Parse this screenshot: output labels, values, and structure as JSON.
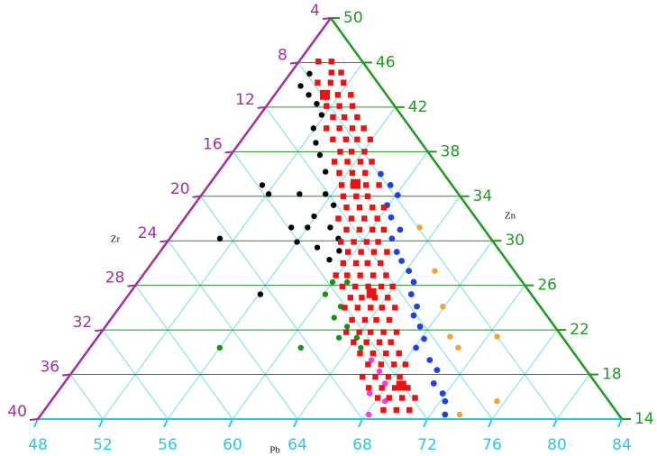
{
  "chart_data": {
    "type": "ternary",
    "xlabel": "Pb",
    "ylabel": "Zn",
    "zlabel": "Zr",
    "xlim": [
      48,
      84
    ],
    "ylim": [
      14,
      50
    ],
    "zlim": [
      4,
      40
    ],
    "xticks": [
      48,
      52,
      56,
      60,
      64,
      68,
      72,
      76,
      80,
      84
    ],
    "yticks": [
      14,
      18,
      22,
      26,
      30,
      34,
      38,
      42,
      46,
      50
    ],
    "zticks": [
      4,
      8,
      12,
      16,
      20,
      24,
      28,
      32,
      36,
      40
    ],
    "grid": true,
    "series": [
      {
        "color": "#000000",
        "size": 3.2,
        "x": [
          49.2,
          49.2,
          50.1,
          51.0,
          51.8,
          51.9,
          52.7,
          53.5,
          54.6,
          51.3,
          52.1,
          54.0,
          55.6,
          56.6,
          55.9,
          55.0,
          56.0,
          57.4,
          58.4,
          51.1,
          56.0,
          57.5,
          59.0,
          58.8,
          56.1
        ],
        "values": [
          45.0,
          43.9,
          43.1,
          42.3,
          41.3,
          40.1,
          38.8,
          37.7,
          36.2,
          35.0,
          34.2,
          34.2,
          34.2,
          33.2,
          32.2,
          31.2,
          31.2,
          31.2,
          30.2,
          30.2,
          29.9,
          29.4,
          29.1,
          28.3,
          25.2
        ]
      },
      {
        "color": "#1a8f1a",
        "size": 3.2,
        "x": [
          60.0,
          60.9,
          60.1,
          61.6,
          61.7,
          62.9,
          64.0,
          62.9,
          56.0,
          61.0,
          64.7
        ],
        "values": [
          26.3,
          26.3,
          25.2,
          24.1,
          23.1,
          22.3,
          21.3,
          21.3,
          20.4,
          20.4,
          20.4
        ]
      },
      {
        "color": "#ff33ee",
        "size": 3.2,
        "x": [
          65.9,
          66.9,
          67.8,
          67.3,
          68.6,
          68.2
        ],
        "values": [
          19.3,
          18.3,
          17.2,
          16.3,
          15.6,
          14.4
        ]
      },
      {
        "color": "#1f3fe8",
        "size": 3.4,
        "x": [
          58.1,
          59.2,
          60.1,
          59.9,
          60.7,
          61.8,
          61.7,
          62.6,
          63.3,
          64.2,
          65.0,
          65.4,
          66.3,
          66.5,
          67.4,
          68.2,
          68.1,
          69.5,
          70.4,
          70.8,
          71.8,
          72.3,
          72.9
        ],
        "values": [
          36.0,
          35.0,
          34.1,
          33.2,
          32.1,
          31.0,
          30.2,
          29.0,
          28.2,
          27.3,
          26.3,
          25.2,
          24.1,
          23.3,
          22.3,
          21.2,
          20.4,
          19.3,
          18.4,
          17.2,
          16.3,
          15.6,
          14.4
        ]
      },
      {
        "color": "#f5a030",
        "size": 3.2,
        "x": [
          62.9,
          65.8,
          67.9,
          69.7,
          70.7,
          72.6,
          75.5,
          73.8
        ],
        "values": [
          31.2,
          27.3,
          24.1,
          21.4,
          20.4,
          21.4,
          15.6,
          14.4
        ]
      },
      {
        "color": "#ee1111",
        "size": 3.2,
        "x": [
          49.2,
          50.0,
          50.5,
          51.1,
          50.1,
          50.9,
          51.7,
          51.1,
          51.9,
          52.7,
          51.7,
          52.5,
          53.3,
          52.6,
          53.3,
          54.1,
          52.7,
          53.5,
          54.3,
          55.0,
          53.6,
          54.4,
          55.1,
          55.9,
          54.6,
          55.3,
          56.1,
          54.7,
          55.5,
          56.3,
          57.0,
          55.5,
          56.3,
          57.1,
          56.2,
          56.9,
          57.7,
          58.5,
          56.8,
          57.6,
          58.3,
          57.5,
          58.3,
          59.1,
          59.8,
          57.5,
          58.3,
          59.1,
          59.9,
          58.5,
          59.3,
          60.1,
          60.8,
          58.7,
          59.5,
          60.3,
          61.0,
          59.6,
          60.4,
          61.2,
          62.0,
          59.8,
          60.6,
          61.3,
          62.1,
          59.9,
          60.6,
          61.4,
          62.2,
          63.0,
          60.8,
          61.6,
          62.4,
          63.2,
          63.9,
          61.8,
          62.5,
          63.3,
          64.1,
          61.9,
          62.7,
          63.5,
          64.2,
          65.0,
          62.9,
          63.7,
          64.4,
          65.2,
          63.1,
          63.9,
          64.6,
          65.4,
          66.2,
          64.0,
          64.8,
          65.6,
          66.3,
          64.9,
          65.7,
          66.5,
          67.3,
          65.9,
          66.7,
          67.5,
          68.2,
          66.1,
          66.9,
          67.7,
          68.4,
          67.0,
          67.8,
          68.6,
          69.4,
          68.0,
          68.7,
          69.5,
          70.3,
          68.9,
          69.7,
          70.5
        ],
        "values": [
          46.1,
          46.1,
          45.1,
          45.1,
          44.2,
          44.2,
          44.2,
          43.1,
          43.1,
          43.1,
          42.1,
          42.1,
          42.1,
          41.1,
          41.1,
          41.1,
          40.1,
          40.1,
          40.1,
          40.1,
          39.1,
          39.1,
          39.1,
          39.1,
          38.0,
          38.0,
          38.0,
          37.1,
          37.1,
          37.1,
          37.1,
          36.1,
          36.1,
          36.1,
          35.0,
          35.0,
          35.0,
          35.0,
          34.0,
          34.0,
          34.0,
          33.0,
          33.0,
          33.0,
          33.0,
          32.0,
          32.0,
          32.0,
          32.0,
          31.0,
          31.0,
          31.0,
          31.0,
          29.9,
          29.9,
          29.9,
          29.9,
          29.0,
          29.0,
          29.0,
          29.0,
          28.0,
          28.0,
          28.0,
          28.0,
          26.9,
          26.9,
          26.9,
          26.9,
          26.9,
          25.9,
          25.9,
          25.9,
          25.9,
          25.9,
          24.9,
          24.9,
          24.9,
          24.9,
          24.0,
          24.0,
          24.0,
          24.0,
          24.0,
          22.9,
          22.9,
          22.9,
          22.9,
          21.8,
          21.8,
          21.8,
          21.8,
          21.8,
          20.9,
          20.9,
          20.9,
          20.9,
          19.9,
          19.9,
          19.9,
          19.9,
          18.9,
          18.9,
          18.9,
          18.9,
          17.8,
          17.8,
          17.8,
          17.8,
          16.8,
          16.8,
          16.8,
          16.8,
          15.9,
          15.9,
          15.9,
          15.9,
          14.8,
          14.8,
          14.8
        ]
      },
      {
        "color": "#ee1111",
        "size": 5.5,
        "x": [
          51.1,
          57.0,
          62.9,
          68.9
        ],
        "values": [
          43.1,
          35.1,
          25.3,
          17.0
        ]
      }
    ]
  }
}
